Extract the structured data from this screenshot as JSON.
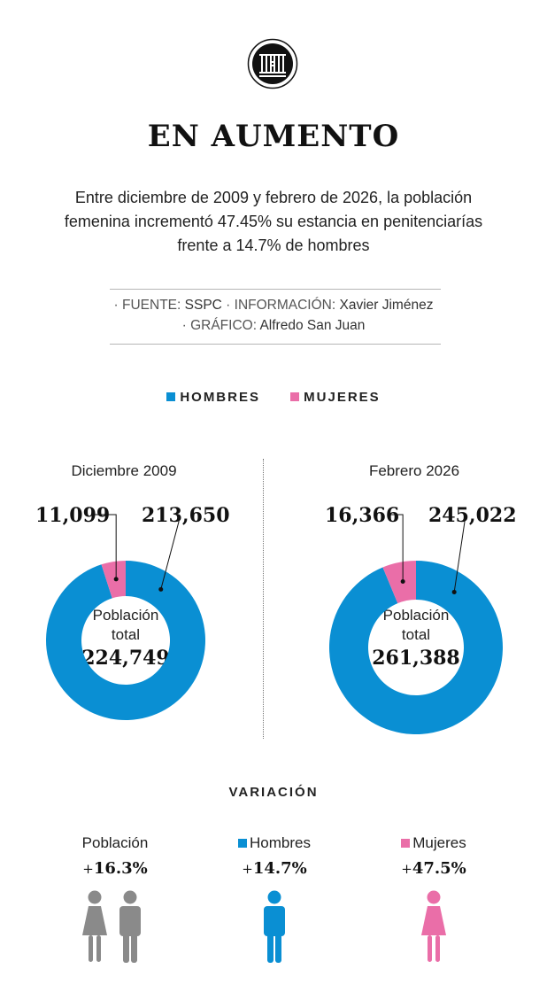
{
  "header": {
    "title": "EN AUMENTO",
    "subtitle_lines": [
      "Entre diciembre de 2009 y febrero de 2026, la población",
      "femenina incrementó 47.45% su estancia en penitenciarías",
      "frente a 14.7% de hombres"
    ],
    "logo_icon": "prison-bars-icon"
  },
  "credits": {
    "line1": {
      "l1": "· FUENTE:",
      "v1": "SSPC",
      "l2": "· INFORMACIÓN:",
      "v2": "Xavier Jiménez"
    },
    "line2": {
      "l1": "· GRÁFICO:",
      "v1": "Alfredo San Juan"
    }
  },
  "colors": {
    "hombres": "#0a8fd3",
    "mujeres": "#ea6ea8",
    "neutral": "#8a8a8a"
  },
  "legend": {
    "hombres": "HOMBRES",
    "mujeres": "MUJERES"
  },
  "chart_data": [
    {
      "type": "pie",
      "period": "Diciembre 2009",
      "slices": [
        {
          "name": "Hombres",
          "value": 213650,
          "label": "213,650"
        },
        {
          "name": "Mujeres",
          "value": 11099,
          "label": "11,099"
        }
      ],
      "center_label": "Población total",
      "center_line1": "Población",
      "center_line2": "total",
      "total": "224,749"
    },
    {
      "type": "pie",
      "period": "Febrero 2026",
      "slices": [
        {
          "name": "Hombres",
          "value": 245022,
          "label": "245,022"
        },
        {
          "name": "Mujeres",
          "value": 16366,
          "label": "16,366"
        }
      ],
      "center_label": "Población total",
      "center_line1": "Población",
      "center_line2": "total",
      "total": "261,388"
    }
  ],
  "variacion": {
    "title": "VARIACIÓN",
    "items": [
      {
        "label": "Población",
        "plus": "+",
        "value": "16.3%",
        "icon": "woman-man-icon"
      },
      {
        "label": "Hombres",
        "plus": "+",
        "value": "14.7%",
        "icon": "man-icon"
      },
      {
        "label": "Mujeres",
        "plus": "+",
        "value": "47.5%",
        "icon": "woman-icon"
      }
    ]
  }
}
